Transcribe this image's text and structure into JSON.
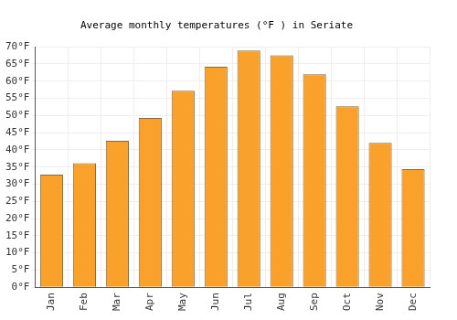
{
  "chart_data": {
    "type": "bar",
    "title": "Average monthly temperatures (°F ) in Seriate",
    "categories": [
      "Jan",
      "Feb",
      "Mar",
      "Apr",
      "May",
      "Jun",
      "Jul",
      "Aug",
      "Sep",
      "Oct",
      "Nov",
      "Dec"
    ],
    "values": [
      32.8,
      36.1,
      42.6,
      49.3,
      57.2,
      64.2,
      68.9,
      67.5,
      62.0,
      52.7,
      42.0,
      34.4
    ],
    "color": "#f9a12a",
    "ylim": [
      0,
      70
    ],
    "yticks": [
      {
        "value": 0,
        "label": "0°F"
      },
      {
        "value": 5,
        "label": "5°F"
      },
      {
        "value": 10,
        "label": "10°F"
      },
      {
        "value": 15,
        "label": "15°F"
      },
      {
        "value": 20,
        "label": "20°F"
      },
      {
        "value": 25,
        "label": "25°F"
      },
      {
        "value": 30,
        "label": "30°F"
      },
      {
        "value": 35,
        "label": "35°F"
      },
      {
        "value": 40,
        "label": "40°F"
      },
      {
        "value": 45,
        "label": "45°F"
      },
      {
        "value": 50,
        "label": "50°F"
      },
      {
        "value": 55,
        "label": "55°F"
      },
      {
        "value": 60,
        "label": "60°F"
      },
      {
        "value": 65,
        "label": "65°F"
      },
      {
        "value": 70,
        "label": "70°F"
      }
    ],
    "grid": true
  }
}
